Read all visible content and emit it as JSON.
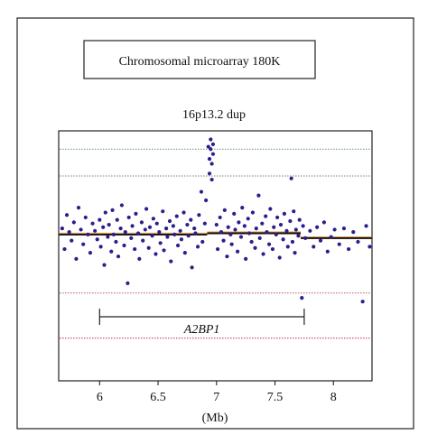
{
  "title_box": "Chromosomal microarray 180K",
  "chart_data": {
    "type": "scatter",
    "subtitle": "16p13.2 dup",
    "xlabel": "(Mb)",
    "xlim": [
      5.65,
      8.33
    ],
    "ylim": [
      -1.2,
      0.85
    ],
    "x_ticks": [
      6,
      6.5,
      7,
      7.5,
      8
    ],
    "x_tick_labels": [
      "6",
      "6.5",
      "7",
      "7.5",
      "8"
    ],
    "reference_lines": [
      {
        "y": 0.7,
        "color": "#7aa07a",
        "style": "dotted"
      },
      {
        "y": 0.48,
        "color": "#6a8f6a",
        "style": "dotted"
      },
      {
        "y": -0.48,
        "color": "#c26b7c",
        "style": "dotted"
      },
      {
        "y": -0.85,
        "color": "#cc3d5a",
        "style": "dotted"
      }
    ],
    "segments": [
      {
        "x": [
          5.65,
          6.0
        ],
        "y": 0.0
      },
      {
        "x": [
          6.0,
          6.92
        ],
        "y": 0.0
      },
      {
        "x": [
          6.92,
          7.72
        ],
        "y": 0.01
      },
      {
        "x": [
          7.72,
          8.33
        ],
        "y": -0.03
      }
    ],
    "gene_annotation": {
      "label": "A2BP1",
      "x_start": 6.0,
      "x_end": 7.75
    },
    "point_color": "#2b1f8c",
    "points": [
      [
        5.68,
        0.05
      ],
      [
        5.7,
        -0.12
      ],
      [
        5.72,
        0.16
      ],
      [
        5.74,
        0.02
      ],
      [
        5.76,
        -0.05
      ],
      [
        5.78,
        0.1
      ],
      [
        5.8,
        -0.2
      ],
      [
        5.82,
        0.22
      ],
      [
        5.84,
        0.04
      ],
      [
        5.86,
        -0.08
      ],
      [
        5.88,
        0.14
      ],
      [
        5.9,
        0.0
      ],
      [
        5.92,
        -0.15
      ],
      [
        5.94,
        0.09
      ],
      [
        5.96,
        0.03
      ],
      [
        5.98,
        -0.04
      ],
      [
        6.0,
        0.12
      ],
      [
        6.01,
        -0.1
      ],
      [
        6.03,
        0.06
      ],
      [
        6.04,
        -0.25
      ],
      [
        6.05,
        0.18
      ],
      [
        6.07,
        -0.02
      ],
      [
        6.08,
        0.08
      ],
      [
        6.1,
        -0.14
      ],
      [
        6.11,
        0.2
      ],
      [
        6.12,
        0.0
      ],
      [
        6.14,
        -0.06
      ],
      [
        6.15,
        0.12
      ],
      [
        6.16,
        -0.18
      ],
      [
        6.18,
        0.05
      ],
      [
        6.19,
        0.24
      ],
      [
        6.21,
        -0.09
      ],
      [
        6.22,
        0.02
      ],
      [
        6.24,
        -0.4
      ],
      [
        6.25,
        0.14
      ],
      [
        6.27,
        -0.03
      ],
      [
        6.28,
        0.07
      ],
      [
        6.3,
        -0.12
      ],
      [
        6.31,
        0.17
      ],
      [
        6.33,
        0.01
      ],
      [
        6.34,
        -0.2
      ],
      [
        6.36,
        0.1
      ],
      [
        6.37,
        -0.05
      ],
      [
        6.39,
        0.04
      ],
      [
        6.4,
        0.21
      ],
      [
        6.42,
        -0.11
      ],
      [
        6.43,
        0.06
      ],
      [
        6.45,
        -0.01
      ],
      [
        6.46,
        0.13
      ],
      [
        6.48,
        -0.16
      ],
      [
        6.49,
        0.09
      ],
      [
        6.51,
        0.02
      ],
      [
        6.52,
        -0.07
      ],
      [
        6.54,
        0.19
      ],
      [
        6.55,
        -0.13
      ],
      [
        6.57,
        0.05
      ],
      [
        6.58,
        -0.02
      ],
      [
        6.6,
        0.11
      ],
      [
        6.61,
        -0.22
      ],
      [
        6.63,
        0.07
      ],
      [
        6.64,
        0.0
      ],
      [
        6.66,
        0.15
      ],
      [
        6.67,
        -0.09
      ],
      [
        6.69,
        0.03
      ],
      [
        6.7,
        -0.04
      ],
      [
        6.72,
        0.18
      ],
      [
        6.73,
        -0.15
      ],
      [
        6.75,
        0.08
      ],
      [
        6.76,
        -0.01
      ],
      [
        6.78,
        0.12
      ],
      [
        6.79,
        -0.27
      ],
      [
        6.81,
        0.05
      ],
      [
        6.82,
        0.01
      ],
      [
        6.84,
        -0.1
      ],
      [
        6.85,
        0.16
      ],
      [
        6.87,
        0.35
      ],
      [
        6.88,
        -0.06
      ],
      [
        6.9,
        0.09
      ],
      [
        6.91,
        0.28
      ],
      [
        6.94,
        0.62
      ],
      [
        6.95,
        0.7
      ],
      [
        6.96,
        0.58
      ],
      [
        6.97,
        0.66
      ],
      [
        6.93,
        0.72
      ],
      [
        6.95,
        0.78
      ],
      [
        6.97,
        0.74
      ],
      [
        6.94,
        0.5
      ],
      [
        6.96,
        0.45
      ],
      [
        7.0,
        0.08
      ],
      [
        7.01,
        -0.12
      ],
      [
        7.03,
        0.14
      ],
      [
        7.04,
        0.02
      ],
      [
        7.06,
        -0.05
      ],
      [
        7.07,
        0.2
      ],
      [
        7.09,
        -0.18
      ],
      [
        7.1,
        0.06
      ],
      [
        7.12,
        0.0
      ],
      [
        7.13,
        -0.08
      ],
      [
        7.15,
        0.17
      ],
      [
        7.16,
        0.04
      ],
      [
        7.18,
        -0.14
      ],
      [
        7.19,
        0.1
      ],
      [
        7.21,
        -0.02
      ],
      [
        7.22,
        0.22
      ],
      [
        7.24,
        0.07
      ],
      [
        7.25,
        -0.2
      ],
      [
        7.27,
        0.13
      ],
      [
        7.28,
        0.01
      ],
      [
        7.3,
        -0.06
      ],
      [
        7.31,
        0.18
      ],
      [
        7.33,
        -0.11
      ],
      [
        7.34,
        0.05
      ],
      [
        7.36,
        0.32
      ],
      [
        7.37,
        -0.03
      ],
      [
        7.39,
        0.09
      ],
      [
        7.4,
        -0.16
      ],
      [
        7.42,
        0.15
      ],
      [
        7.43,
        0.02
      ],
      [
        7.45,
        -0.08
      ],
      [
        7.46,
        0.21
      ],
      [
        7.48,
        -0.12
      ],
      [
        7.49,
        0.06
      ],
      [
        7.51,
        0.0
      ],
      [
        7.52,
        0.14
      ],
      [
        7.54,
        -0.19
      ],
      [
        7.55,
        0.08
      ],
      [
        7.57,
        -0.04
      ],
      [
        7.58,
        0.17
      ],
      [
        7.6,
        0.03
      ],
      [
        7.61,
        -0.1
      ],
      [
        7.63,
        0.11
      ],
      [
        7.64,
        0.46
      ],
      [
        7.65,
        -0.06
      ],
      [
        7.66,
        0.19
      ],
      [
        7.67,
        -0.15
      ],
      [
        7.68,
        0.04
      ],
      [
        7.7,
        -0.01
      ],
      [
        7.71,
        0.12
      ],
      [
        7.73,
        -0.52
      ],
      [
        7.74,
        0.07
      ],
      [
        7.76,
        -0.03
      ],
      [
        7.8,
        0.03
      ],
      [
        7.83,
        -0.1
      ],
      [
        7.86,
        0.06
      ],
      [
        7.89,
        -0.05
      ],
      [
        7.92,
        0.1
      ],
      [
        7.95,
        -0.14
      ],
      [
        7.98,
        -0.02
      ],
      [
        8.01,
        0.04
      ],
      [
        8.05,
        -0.08
      ],
      [
        8.09,
        0.05
      ],
      [
        8.13,
        -0.12
      ],
      [
        8.17,
        0.02
      ],
      [
        8.21,
        -0.06
      ],
      [
        8.25,
        -0.55
      ],
      [
        8.28,
        0.07
      ],
      [
        8.31,
        -0.1
      ]
    ]
  }
}
